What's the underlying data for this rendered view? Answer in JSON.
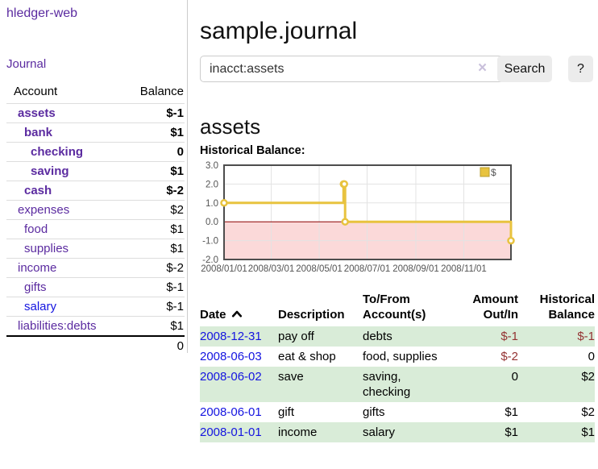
{
  "app": {
    "title": "hledger-web"
  },
  "sidebar": {
    "journal_link": "Journal",
    "headers": {
      "account": "Account",
      "balance": "Balance"
    },
    "accounts": [
      {
        "name": "assets",
        "balance": "$-1"
      },
      {
        "name": "bank",
        "balance": "$1"
      },
      {
        "name": "checking",
        "balance": "0"
      },
      {
        "name": "saving",
        "balance": "$1"
      },
      {
        "name": "cash",
        "balance": "$-2"
      },
      {
        "name": "expenses",
        "balance": "$2"
      },
      {
        "name": "food",
        "balance": "$1"
      },
      {
        "name": "supplies",
        "balance": "$1"
      },
      {
        "name": "income",
        "balance": "$-2"
      },
      {
        "name": "gifts",
        "balance": "$-1"
      },
      {
        "name": "salary",
        "balance": "$-1"
      },
      {
        "name": "liabilities:debts",
        "balance": "$1"
      }
    ],
    "total": "0"
  },
  "main": {
    "title": "sample.journal",
    "search": {
      "query": "inacct:assets",
      "clear_icon": "×",
      "search_label": "Search",
      "help_label": "?"
    },
    "account_heading": "assets",
    "chart_heading": "Historical Balance:"
  },
  "chart_data": {
    "type": "line",
    "title": "Historical Balance",
    "series": [
      {
        "name": "$",
        "x": [
          "2008-01-01",
          "2008-06-01",
          "2008-06-02",
          "2008-06-03",
          "2008-12-31"
        ],
        "values": [
          1,
          2,
          2,
          0,
          -1
        ],
        "style": "step-post with open circle markers"
      }
    ],
    "xlim": [
      "2008-01-01",
      "2008-12-31"
    ],
    "ylim": [
      -2,
      3
    ],
    "x_ticks": [
      "2008/01/01",
      "2008/03/01",
      "2008/05/01",
      "2008/07/01",
      "2008/09/01",
      "2008/11/01"
    ],
    "y_ticks": [
      "3.0",
      "2.0",
      "1.0",
      "0.0",
      "-1.0",
      "-2.0"
    ],
    "grid": true,
    "legend_position": "top-right",
    "line_color": "#e8c33f",
    "negative_region_fill": "#fbd9d9",
    "zero_line_color": "#8b0000"
  },
  "transactions": {
    "headers": {
      "date": "Date",
      "description": "Description",
      "account_line1": "To/From",
      "account_line2": "Account(s)",
      "amount_line1": "Amount",
      "amount_line2": "Out/In",
      "balance_line1": "Historical",
      "balance_line2": "Balance"
    },
    "rows": [
      {
        "date": "2008-12-31",
        "description": "pay off",
        "accounts": "debts",
        "amount": "$-1",
        "balance": "$-1"
      },
      {
        "date": "2008-06-03",
        "description": "eat & shop",
        "accounts": "food, supplies",
        "amount": "$-2",
        "balance": "0"
      },
      {
        "date": "2008-06-02",
        "description": "save",
        "accounts": "saving, checking",
        "amount": "0",
        "balance": "$2"
      },
      {
        "date": "2008-06-01",
        "description": "gift",
        "accounts": "gifts",
        "amount": "$1",
        "balance": "$2"
      },
      {
        "date": "2008-01-01",
        "description": "income",
        "accounts": "salary",
        "amount": "$1",
        "balance": "$1"
      }
    ]
  },
  "colors": {
    "link_purple": "#5b2ba0",
    "link_blue": "#1414e0",
    "negative_dark": "#8b0000",
    "negative_medium": "#943333",
    "negative_light": "#c4716e",
    "row_stripe_green": "#d9ecd8",
    "chart_line": "#e8c33f"
  }
}
